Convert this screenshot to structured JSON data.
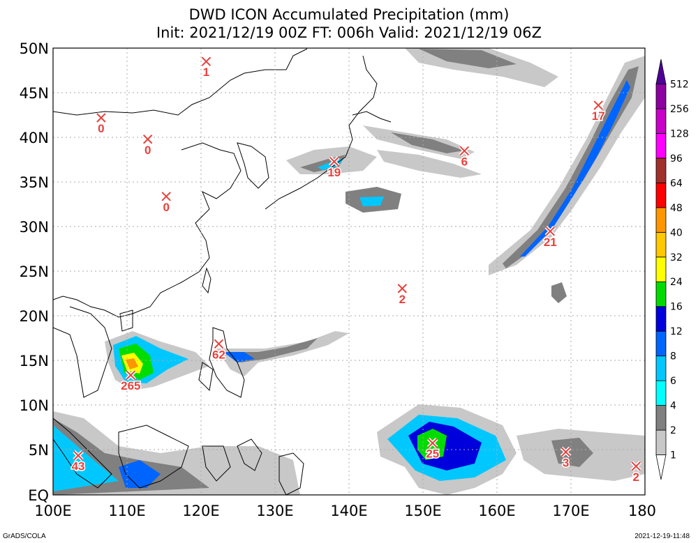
{
  "title": "DWD ICON Accumulated Precipitation (mm)",
  "subtitle": "Init: 2021/12/19 00Z  FT: 006h  Valid: 2021/12/19 06Z",
  "credit": "GrADS/COLA",
  "timestamp": "2021-12-19-11:48",
  "axes": {
    "lon_ticks": [
      "100E",
      "110E",
      "120E",
      "130E",
      "140E",
      "150E",
      "160E",
      "170E",
      "180"
    ],
    "lat_ticks": [
      "EQ",
      "5N",
      "10N",
      "15N",
      "20N",
      "25N",
      "30N",
      "35N",
      "40N",
      "45N",
      "50N"
    ],
    "lon_range": [
      100,
      180
    ],
    "lat_range": [
      0,
      50
    ]
  },
  "colorbar": {
    "labels": [
      "1",
      "2",
      "4",
      "6",
      "8",
      "12",
      "16",
      "24",
      "32",
      "40",
      "48",
      "64",
      "96",
      "128",
      "256",
      "512"
    ],
    "colors": [
      "#ffffff",
      "#c8c8c8",
      "#808080",
      "#00ffff",
      "#00c8ff",
      "#0064ff",
      "#0000dc",
      "#00dc00",
      "#ffff00",
      "#ffc800",
      "#ff9600",
      "#ff0000",
      "#a0302a",
      "#ff00ff",
      "#c800c8",
      "#8c00a0",
      "#50009a"
    ]
  },
  "markers": [
    {
      "label": "1",
      "lon": 120.7,
      "lat": 48.5
    },
    {
      "label": "0",
      "lon": 106.5,
      "lat": 42.2
    },
    {
      "label": "0",
      "lon": 112.8,
      "lat": 39.8
    },
    {
      "label": "0",
      "lon": 115.3,
      "lat": 33.4
    },
    {
      "label": "19",
      "lon": 138.0,
      "lat": 37.3
    },
    {
      "label": "6",
      "lon": 155.6,
      "lat": 38.5
    },
    {
      "label": "17",
      "lon": 173.7,
      "lat": 43.6
    },
    {
      "label": "21",
      "lon": 167.2,
      "lat": 29.5
    },
    {
      "label": "2",
      "lon": 147.2,
      "lat": 23.1
    },
    {
      "label": "62",
      "lon": 122.4,
      "lat": 16.9
    },
    {
      "label": "265",
      "lon": 110.5,
      "lat": 13.4
    },
    {
      "label": "43",
      "lon": 103.4,
      "lat": 4.4
    },
    {
      "label": "25",
      "lon": 151.3,
      "lat": 5.8
    },
    {
      "label": "3",
      "lon": 169.3,
      "lat": 4.8
    },
    {
      "label": "2",
      "lon": 178.8,
      "lat": 3.2
    }
  ]
}
